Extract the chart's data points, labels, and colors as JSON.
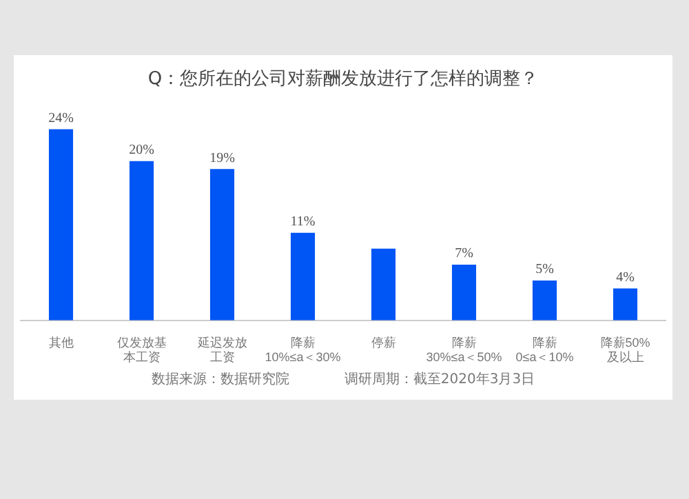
{
  "chart_data": {
    "type": "bar",
    "title": "Q：您所在的公司对薪酬发放进行了怎样的调整？",
    "categories": [
      "其他",
      "仅发放基本工资",
      "延迟发放工资",
      "降薪\n10%≤a＜30%",
      "停薪",
      "降薪\n30%≤a＜50%",
      "降薪\n0≤a＜10%",
      "降薪50%\n及以上"
    ],
    "values": [
      24,
      20,
      19,
      11,
      9,
      7,
      5,
      4
    ],
    "value_labels": [
      "24%",
      "20%",
      "19%",
      "11%",
      null,
      "7%",
      "5%",
      "4%"
    ],
    "color": "#0055f5",
    "grid": false,
    "legend": false,
    "annotations": [
      "数据来源：数据研究院",
      "调研周期：截至2020年3月3日"
    ]
  }
}
